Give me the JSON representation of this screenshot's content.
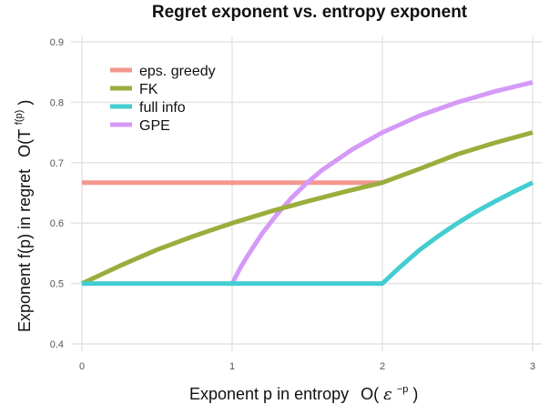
{
  "chart_data": {
    "type": "line",
    "title": "Regret exponent vs. entropy exponent",
    "xlabel": "Exponent p in entropy",
    "xlabel_math_base": "O(",
    "xlabel_math_symbol": "ε",
    "xlabel_math_exp": "−p",
    "xlabel_math_close": ")",
    "ylabel": "Exponent f(p) in regret",
    "ylabel_math_base": "O(T",
    "ylabel_math_exp": "f(p)",
    "ylabel_math_close": ")",
    "xlim": [
      0,
      3
    ],
    "ylim": [
      0.4,
      0.9
    ],
    "xticks": [
      0,
      1,
      2,
      3
    ],
    "xtick_labels": [
      "0",
      "1",
      "2",
      "3"
    ],
    "yticks": [
      0.4,
      0.5,
      0.6,
      0.7,
      0.8,
      0.9
    ],
    "ytick_labels": [
      "0.4",
      "0.5",
      "0.6",
      "0.7",
      "0.8",
      "0.9"
    ],
    "grid": true,
    "legend_position": "top-left",
    "series": [
      {
        "name": "eps. greedy",
        "color": "#f4978e",
        "x": [
          0,
          2
        ],
        "y": [
          0.667,
          0.667
        ]
      },
      {
        "name": "FK",
        "color": "#9aad3d",
        "x": [
          0,
          0.25,
          0.5,
          0.75,
          1,
          1.25,
          1.5,
          1.75,
          2,
          2.25,
          2.5,
          2.75,
          3
        ],
        "y": [
          0.5,
          0.529,
          0.556,
          0.579,
          0.6,
          0.619,
          0.636,
          0.652,
          0.667,
          0.69,
          0.714,
          0.733,
          0.75
        ]
      },
      {
        "name": "full info",
        "color": "#43cdd0",
        "x": [
          0,
          2,
          2.125,
          2.25,
          2.375,
          2.5,
          2.625,
          2.75,
          2.875,
          3
        ],
        "y": [
          0.5,
          0.5,
          0.529,
          0.556,
          0.579,
          0.6,
          0.619,
          0.636,
          0.652,
          0.667
        ]
      },
      {
        "name": "GPE",
        "color": "#d59af7",
        "x": [
          1,
          1.05,
          1.1,
          1.2,
          1.3,
          1.4,
          1.5,
          1.6,
          1.8,
          2,
          2.25,
          2.5,
          2.75,
          3
        ],
        "y": [
          0.5,
          0.524,
          0.545,
          0.583,
          0.615,
          0.643,
          0.667,
          0.688,
          0.722,
          0.75,
          0.778,
          0.8,
          0.818,
          0.833
        ]
      }
    ]
  }
}
